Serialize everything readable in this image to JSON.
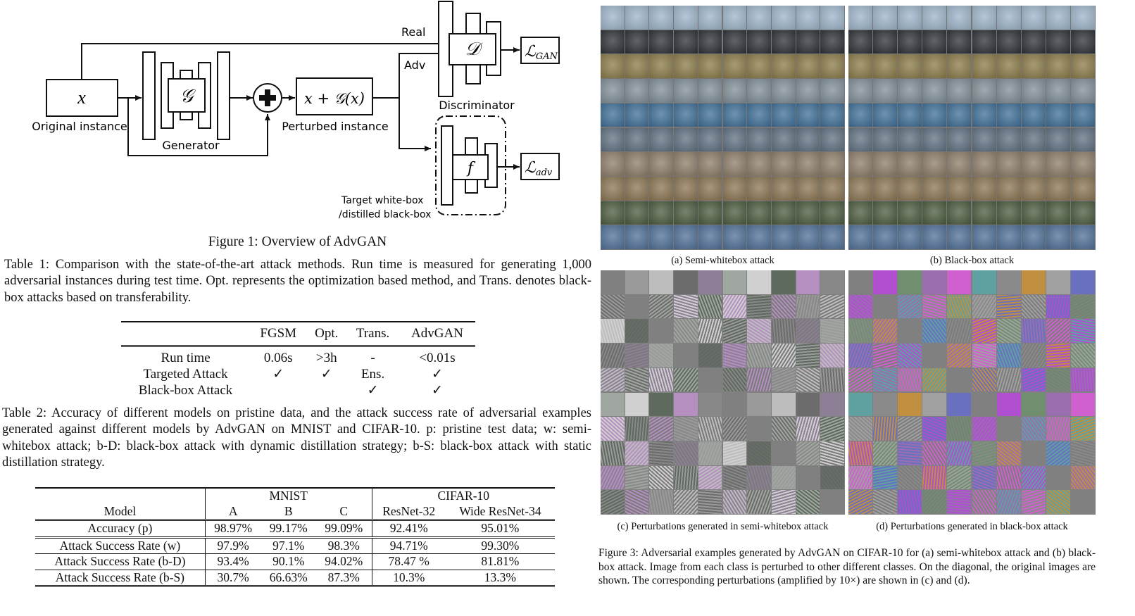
{
  "figure1": {
    "caption": "Figure 1: Overview of AdvGAN",
    "input_box": "x",
    "input_label": "Original instance",
    "generator_symbol": "𝒢",
    "generator_label": "Generator",
    "sum_box": "x + 𝒢(x)",
    "sum_label": "Perturbed instance",
    "real_label": "Real",
    "adv_label": "Adv",
    "discriminator_symbol": "𝒟",
    "discriminator_label": "Discriminator",
    "loss_gan_main": "ℒ",
    "loss_gan_sub": "GAN",
    "target_symbol": "f",
    "target_label_line1": "Target white-box",
    "target_label_line2": "/distilled black-box",
    "loss_adv_main": "ℒ",
    "loss_adv_sub": "adv"
  },
  "table1": {
    "caption": "Table 1: Comparison with the state-of-the-art attack methods. Run time is measured for generating 1,000 adversarial instances during test time. Opt. represents the optimization based method, and Trans. denotes black-box attacks based on transferability.",
    "headers": [
      "",
      "FGSM",
      "Opt.",
      "Trans.",
      "AdvGAN"
    ],
    "rows": [
      [
        "Run time",
        "0.06s",
        ">3h",
        "-",
        "<0.01s"
      ],
      [
        "Targeted Attack",
        "✓",
        "✓",
        "Ens.",
        "✓"
      ],
      [
        "Black-box Attack",
        "",
        "",
        "✓",
        "✓"
      ]
    ]
  },
  "table2": {
    "caption": "Table 2: Accuracy of different models on pristine data, and the attack success rate of adversarial examples generated against different models by AdvGAN on MNIST and CIFAR-10. p: pristine test data; w: semi-whitebox attack; b-D: black-box attack with dynamic distillation strategy; b-S: black-box attack with static distillation strategy.",
    "group_mnist": "MNIST",
    "group_cifar": "CIFAR-10",
    "col_model": "Model",
    "cols": [
      "A",
      "B",
      "C",
      "ResNet-32",
      "Wide ResNet-34"
    ],
    "accuracy_row": [
      "Accuracy (p)",
      "98.97%",
      "99.17%",
      "99.09%",
      "92.41%",
      "95.01%"
    ],
    "rows": [
      [
        "Attack Success Rate (w)",
        "97.9%",
        "97.1%",
        "98.3%",
        "94.71%",
        "99.30%"
      ],
      [
        "Attack Success Rate (b-D)",
        "93.4%",
        "90.1%",
        "94.02%",
        "78.47 %",
        "81.81%"
      ],
      [
        "Attack Success Rate (b-S)",
        "30.7%",
        "66.63%",
        "87.3%",
        "10.3%",
        "13.3%"
      ]
    ]
  },
  "figure3": {
    "sub_a": "(a) Semi-whitebox attack",
    "sub_b": "(b) Black-box attack",
    "sub_c": "(c) Perturbations generated in semi-whitebox attack",
    "sub_d": "(d) Perturbations generated in black-box attack",
    "caption": "Figure 3: Adversarial examples generated by AdvGAN on CIFAR-10 for (a) semi-whitebox attack and (b) black-box attack. Image from each class is perturbed to other different classes. On the diagonal, the original images are shown. The corresponding perturbations (amplified by 10×) are shown in (c) and (d).",
    "class_colors": [
      "#9db4c8",
      "#2c3036",
      "#8a7a48",
      "#7f8d96",
      "#3f6e96",
      "#5f6f80",
      "#8c7c68",
      "#8a7452",
      "#4a5a3e",
      "#4f6f96"
    ],
    "perturb_colors_c": [
      "#7a7a7a",
      "#9a9a9a",
      "#bdbdbd",
      "#6c6c6c",
      "#8d7f95",
      "#a0a7a0",
      "#d0d0d0",
      "#5e6a5e",
      "#b48fc0",
      "#888888"
    ],
    "perturb_colors_d": [
      "#7c7c7c",
      "#b04fd0",
      "#6f8f6f",
      "#9a6fb0",
      "#d05fd0",
      "#5fa0a0",
      "#8a8a8a",
      "#c08f3f",
      "#a0a0a0",
      "#6a70c0"
    ]
  }
}
